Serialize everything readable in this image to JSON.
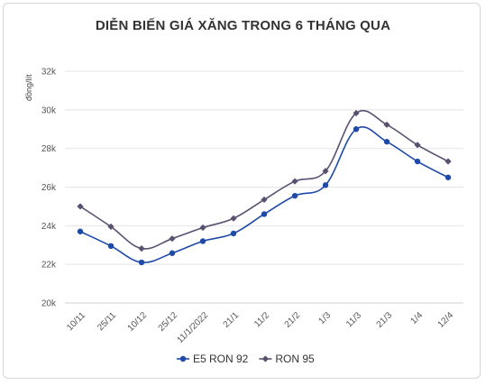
{
  "chart_data": {
    "type": "line",
    "title": "DIỄN BIẾN GIÁ XĂNG TRONG 6 THÁNG QUA",
    "ylabel": "đồng/lít",
    "xlabel": "",
    "categories": [
      "10/11",
      "25/11",
      "10/12",
      "25/12",
      "11/1/2022",
      "21/1",
      "11/2",
      "21/2",
      "1/3",
      "11/3",
      "21/3",
      "1/4",
      "12/4"
    ],
    "yticks": [
      "20k",
      "22k",
      "24k",
      "26k",
      "28k",
      "30k",
      "32k"
    ],
    "ylim": [
      20000,
      32000
    ],
    "grid": true,
    "legend_position": "bottom",
    "series": [
      {
        "name": "E5 RON 92",
        "color": "#1f4aa8",
        "marker": "circle",
        "values": [
          23700,
          22950,
          22100,
          22580,
          23200,
          23600,
          24600,
          25550,
          26100,
          29000,
          28350,
          27330,
          26500
        ]
      },
      {
        "name": "RON 95",
        "color": "#5a5070",
        "marker": "diamond",
        "values": [
          25000,
          23950,
          22820,
          23330,
          23900,
          24380,
          25350,
          26300,
          26830,
          29830,
          29230,
          28180,
          27330
        ]
      }
    ]
  }
}
